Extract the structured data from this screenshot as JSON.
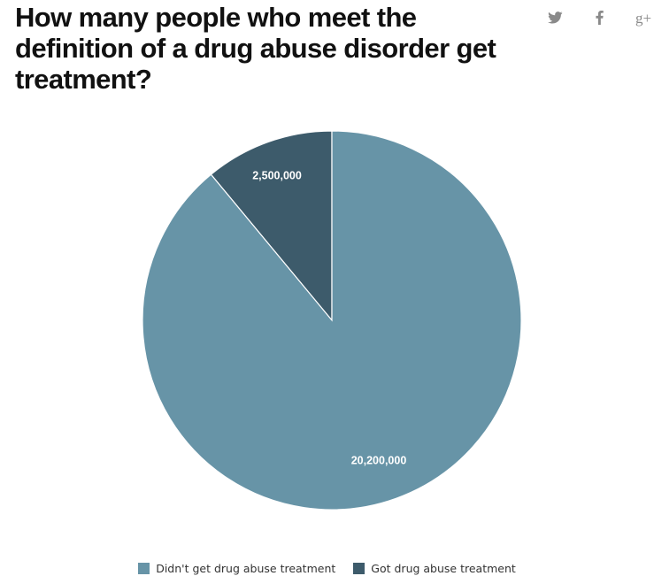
{
  "header": {
    "title": "How many people who meet the definition of a drug abuse disorder get treatment?"
  },
  "share": {
    "twitter_icon": "twitter-icon",
    "facebook_icon": "facebook-icon",
    "gplus_icon": "google-plus-icon",
    "gplus_glyph": "g+"
  },
  "colors": {
    "didnt": "#6794a7",
    "got": "#3d5b6b",
    "icon": "#8a8a8a"
  },
  "chart_data": {
    "type": "pie",
    "title": "How many people who meet the definition of a drug abuse disorder get treatment?",
    "slices": [
      {
        "name": "Got drug abuse treatment",
        "value": 2500000,
        "label": "2,500,000",
        "color": "#3d5b6b"
      },
      {
        "name": "Didn't get drug abuse treatment",
        "value": 20200000,
        "label": "20,200,000",
        "color": "#6794a7"
      }
    ],
    "legend": {
      "position": "bottom",
      "entries": [
        "Didn't get drug abuse treatment",
        "Got drug abuse treatment"
      ]
    }
  }
}
